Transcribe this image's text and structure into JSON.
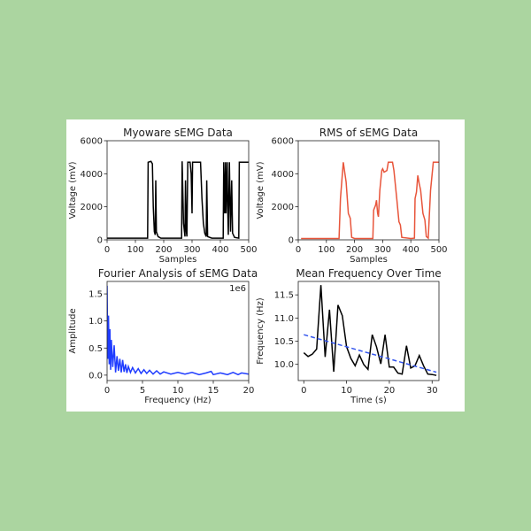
{
  "chart_data": [
    {
      "type": "line",
      "title": "Myoware sEMG Data",
      "xlabel": "Samples",
      "ylabel": "Voltage (mV)",
      "xlim": [
        0,
        500
      ],
      "ylim": [
        0,
        6000
      ],
      "xticks": [
        0,
        100,
        200,
        300,
        400,
        500
      ],
      "yticks": [
        0,
        2000,
        4000,
        6000
      ],
      "color": "#000000",
      "x": [
        0,
        143,
        145,
        155,
        160,
        163,
        167,
        170,
        172,
        174,
        180,
        190,
        263,
        265,
        270,
        275,
        277,
        280,
        282,
        285,
        290,
        293,
        297,
        300,
        302,
        330,
        335,
        340,
        345,
        350,
        352,
        355,
        370,
        410,
        412,
        415,
        418,
        420,
        424,
        426,
        428,
        432,
        436,
        440,
        443,
        450,
        465,
        467,
        500
      ],
      "y": [
        100,
        100,
        4700,
        4750,
        4600,
        2000,
        500,
        300,
        3600,
        500,
        200,
        100,
        100,
        4750,
        1000,
        200,
        3600,
        500,
        200,
        4700,
        4700,
        4700,
        4000,
        1600,
        4700,
        4700,
        2500,
        1000,
        400,
        200,
        3600,
        200,
        100,
        100,
        4700,
        1600,
        4700,
        1600,
        4700,
        2000,
        300,
        4700,
        500,
        3600,
        400,
        150,
        100,
        4700,
        4700
      ]
    },
    {
      "type": "line",
      "title": "RMS of sEMG Data",
      "xlabel": "Samples",
      "ylabel": "Voltage (mV)",
      "xlim": [
        0,
        500
      ],
      "ylim": [
        0,
        6000
      ],
      "xticks": [
        0,
        100,
        200,
        300,
        400,
        500
      ],
      "yticks": [
        0,
        2000,
        4000,
        6000
      ],
      "color": "#e8553b",
      "x": [
        10,
        145,
        150,
        160,
        170,
        178,
        185,
        190,
        200,
        265,
        268,
        275,
        278,
        282,
        285,
        290,
        297,
        300,
        305,
        315,
        320,
        335,
        340,
        350,
        358,
        363,
        368,
        400,
        413,
        415,
        420,
        425,
        430,
        435,
        443,
        450,
        455,
        462,
        470,
        480,
        500
      ],
      "y": [
        80,
        80,
        2500,
        4700,
        3500,
        1600,
        1300,
        150,
        80,
        80,
        1800,
        2100,
        2400,
        1600,
        1400,
        3000,
        4200,
        4300,
        4100,
        4200,
        4700,
        4700,
        4200,
        2500,
        1100,
        900,
        150,
        80,
        100,
        2500,
        2900,
        3900,
        3400,
        3000,
        1600,
        1200,
        200,
        100,
        3000,
        4700,
        4700
      ]
    },
    {
      "type": "line",
      "title": "Fourier Analysis of sEMG Data",
      "xlabel": "Frequency (Hz)",
      "ylabel": "Amplitude",
      "offset_label": "1e6",
      "xlim": [
        0,
        20
      ],
      "ylim": [
        -0.1,
        1.73
      ],
      "xticks": [
        0,
        5,
        10,
        15,
        20
      ],
      "yticks": [
        "0.0",
        "0.5",
        "1.0",
        "1.5"
      ],
      "color": "#1f3cff",
      "x": [
        0,
        0.1,
        0.2,
        0.3,
        0.4,
        0.5,
        0.6,
        0.8,
        1.0,
        1.2,
        1.4,
        1.6,
        1.8,
        2.0,
        2.2,
        2.4,
        2.6,
        2.8,
        3.0,
        3.3,
        3.6,
        4.0,
        4.4,
        4.8,
        5.2,
        5.6,
        6.0,
        6.5,
        7.0,
        7.5,
        8.0,
        9.0,
        10,
        11,
        12,
        13,
        14,
        14.7,
        15,
        16,
        17,
        17.8,
        18.5,
        19,
        20
      ],
      "y": [
        1.65,
        0.3,
        1.1,
        0.2,
        0.85,
        0.1,
        0.65,
        0.15,
        0.55,
        0.05,
        0.35,
        0.08,
        0.3,
        0.05,
        0.28,
        0.06,
        0.2,
        0.04,
        0.16,
        0.05,
        0.14,
        0.04,
        0.12,
        0.03,
        0.1,
        0.03,
        0.09,
        0.02,
        0.08,
        0.02,
        0.06,
        0.02,
        0.05,
        0.02,
        0.05,
        0.01,
        0.04,
        0.07,
        0.01,
        0.04,
        0.01,
        0.05,
        0.01,
        0.04,
        0.02
      ]
    },
    {
      "type": "line",
      "title": "Mean Frequency Over Time",
      "xlabel": "Time (s)",
      "ylabel": "Frequency (Hz)",
      "xlim": [
        -1.3,
        31.6
      ],
      "ylim": [
        9.65,
        11.79
      ],
      "xticks": [
        0,
        10,
        20,
        30
      ],
      "yticks": [
        "10.0",
        "10.5",
        "11.0",
        "11.5"
      ],
      "color": "#000000",
      "x": [
        0,
        1,
        2,
        3,
        4,
        5,
        6,
        7,
        8,
        9,
        10,
        11,
        12,
        13,
        14,
        15,
        16,
        17,
        18,
        19,
        20,
        21,
        22,
        23,
        24,
        25,
        26,
        27,
        28,
        29,
        30,
        31
      ],
      "y": [
        10.25,
        10.17,
        10.22,
        10.33,
        11.71,
        10.16,
        11.18,
        9.84,
        11.28,
        11.05,
        10.38,
        10.13,
        9.97,
        10.2,
        10.0,
        9.89,
        10.64,
        10.38,
        10.01,
        10.64,
        9.94,
        9.94,
        9.81,
        9.79,
        10.4,
        9.92,
        9.97,
        10.19,
        9.97,
        9.79,
        9.78,
        9.76
      ],
      "trend": {
        "x": [
          0,
          31
        ],
        "y": [
          10.64,
          9.83
        ],
        "color": "#3355ee",
        "style": "dashed"
      }
    }
  ]
}
